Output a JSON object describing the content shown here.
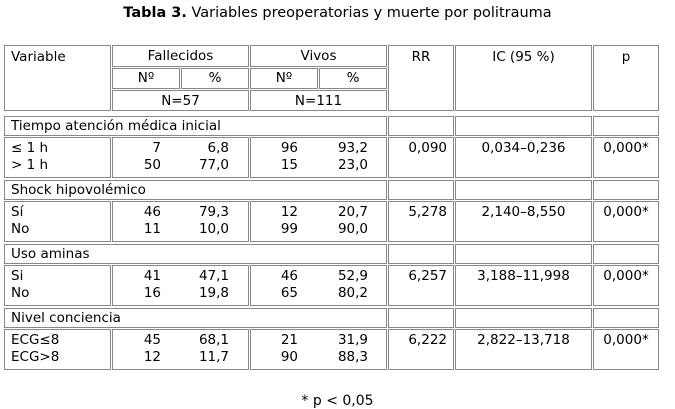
{
  "caption": {
    "bold": "Tabla 3.",
    "text": " Variables preoperatorias y muerte por politrauma"
  },
  "headers": {
    "variable": "Variable",
    "fallecidos": "Fallecidos",
    "vivos": "Vivos",
    "rr": "RR",
    "ic": "IC (95 %)",
    "p": "p",
    "n_label": "Nº",
    "pct_label": "%",
    "n_fallecidos": "N=57",
    "n_vivos": "N=111"
  },
  "sections": [
    {
      "title": "Tiempo atención médica inicial",
      "rows": [
        {
          "label": "≤ 1 h",
          "f_n": "7",
          "f_pct": "6,8",
          "v_n": "96",
          "v_pct": "93,2"
        },
        {
          "label": "> 1 h",
          "f_n": "50",
          "f_pct": "77,0",
          "v_n": "15",
          "v_pct": "23,0"
        }
      ],
      "rr": "0,090",
      "ic": "0,034–0,236",
      "p": "0,000*"
    },
    {
      "title": "Shock hipovolémico",
      "rows": [
        {
          "label": "Sí",
          "f_n": "46",
          "f_pct": "79,3",
          "v_n": "12",
          "v_pct": "20,7"
        },
        {
          "label": "No",
          "f_n": "11",
          "f_pct": "10,0",
          "v_n": "99",
          "v_pct": "90,0"
        }
      ],
      "rr": "5,278",
      "ic": "2,140–8,550",
      "p": "0,000*"
    },
    {
      "title": "Uso aminas",
      "rows": [
        {
          "label": "Si",
          "f_n": "41",
          "f_pct": "47,1",
          "v_n": "46",
          "v_pct": "52,9"
        },
        {
          "label": "No",
          "f_n": "16",
          "f_pct": "19,8",
          "v_n": "65",
          "v_pct": "80,2"
        }
      ],
      "rr": "6,257",
      "ic": "3,188–11,998",
      "p": "0,000*"
    },
    {
      "title": "Nivel conciencia",
      "rows": [
        {
          "label": "ECG≤8",
          "f_n": "45",
          "f_pct": "68,1",
          "v_n": "21",
          "v_pct": "31,9"
        },
        {
          "label": "ECG>8",
          "f_n": "12",
          "f_pct": "11,7",
          "v_n": "90",
          "v_pct": "88,3"
        }
      ],
      "rr": "6,222",
      "ic": "2,822–13,718",
      "p": "0,000*"
    }
  ],
  "footnote": "* p < 0,05"
}
